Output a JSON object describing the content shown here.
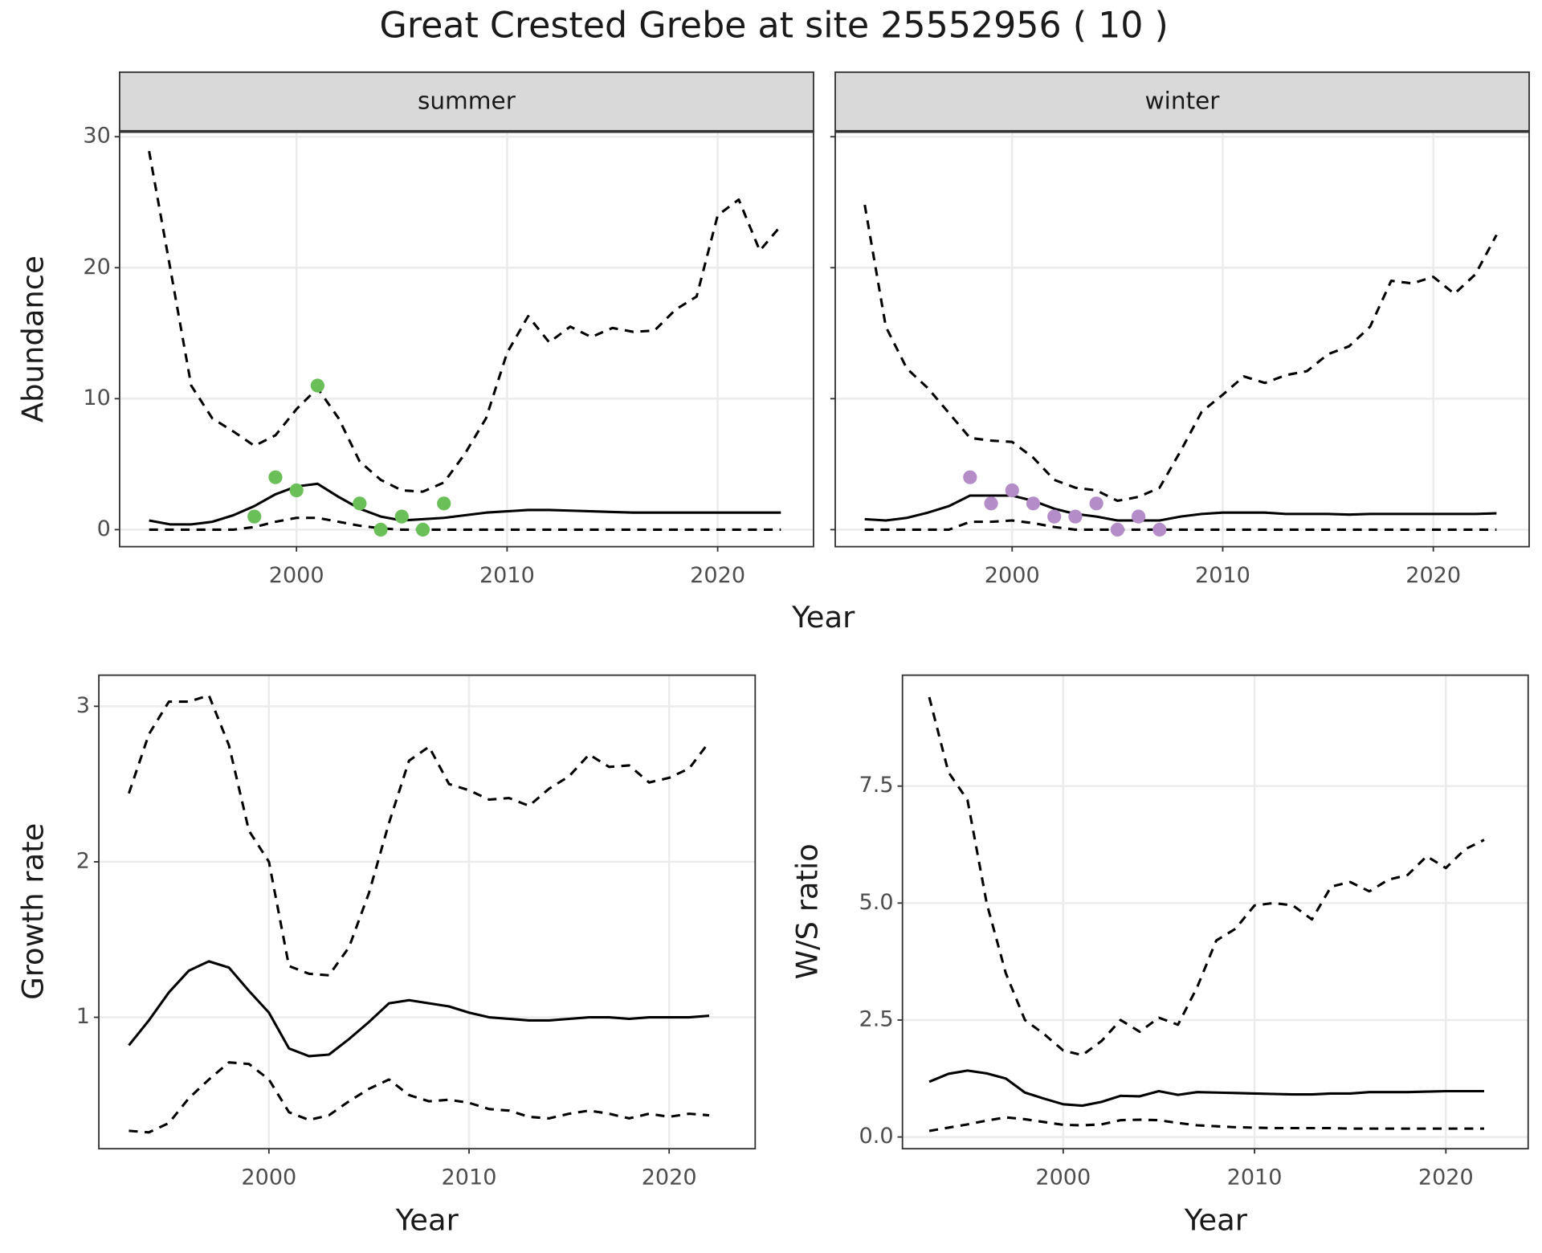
{
  "title": "Great Crested Grebe at site 25552956 ( 10 )",
  "chart_data": [
    {
      "type": "line",
      "strip": "summer",
      "xlabel": "Year",
      "ylabel": "Abundance",
      "x": [
        1993,
        1994,
        1995,
        1996,
        1997,
        1998,
        1999,
        2000,
        2001,
        2002,
        2003,
        2004,
        2005,
        2006,
        2007,
        2008,
        2009,
        2010,
        2011,
        2012,
        2013,
        2014,
        2015,
        2016,
        2017,
        2018,
        2019,
        2020,
        2021,
        2022,
        2023
      ],
      "series": [
        {
          "color": "#000000",
          "dashed": false,
          "values": [
            0.7,
            0.4,
            0.4,
            0.6,
            1.1,
            1.8,
            2.7,
            3.3,
            3.5,
            2.5,
            1.6,
            1.0,
            0.7,
            0.8,
            0.9,
            1.1,
            1.3,
            1.4,
            1.5,
            1.5,
            1.45,
            1.4,
            1.35,
            1.3,
            1.3,
            1.3,
            1.3,
            1.3,
            1.3,
            1.3,
            1.3
          ]
        },
        {
          "color": "#000000",
          "dashed": true,
          "values": [
            0,
            0,
            0,
            0,
            0,
            0.2,
            0.6,
            0.9,
            0.9,
            0.6,
            0.3,
            0.1,
            0,
            0,
            0,
            0,
            0,
            0,
            0,
            0,
            0,
            0,
            0,
            0,
            0,
            0,
            0,
            0,
            0,
            0,
            0
          ]
        },
        {
          "color": "#000000",
          "dashed": true,
          "values": [
            28.9,
            20,
            11,
            8.5,
            7.5,
            6.4,
            7.2,
            9.2,
            10.8,
            8.5,
            5.2,
            3.8,
            3.0,
            2.9,
            3.6,
            5.8,
            8.5,
            13.5,
            16.3,
            14.3,
            15.5,
            14.7,
            15.4,
            15.1,
            15.2,
            16.8,
            17.8,
            24,
            25.2,
            21.3,
            23.2
          ]
        }
      ],
      "points": {
        "color": "#6bbf59",
        "x": [
          1998,
          1999,
          2000,
          2001,
          2003,
          2004,
          2005,
          2006,
          2007
        ],
        "values": [
          1,
          4,
          3,
          11,
          2,
          0,
          1,
          0,
          2
        ]
      },
      "xlim": [
        1991.6,
        2024.55
      ],
      "ylim": [
        -1.3,
        30.4
      ],
      "xticks": [
        2000,
        2010,
        2020
      ],
      "yticks": [
        0,
        10,
        20,
        30
      ],
      "grid": true
    },
    {
      "type": "line",
      "strip": "winter",
      "ytick_labels": false,
      "x": [
        1993,
        1994,
        1995,
        1996,
        1997,
        1998,
        1999,
        2000,
        2001,
        2002,
        2003,
        2004,
        2005,
        2006,
        2007,
        2008,
        2009,
        2010,
        2011,
        2012,
        2013,
        2014,
        2015,
        2016,
        2017,
        2018,
        2019,
        2020,
        2021,
        2022,
        2023
      ],
      "series": [
        {
          "color": "#000000",
          "dashed": false,
          "values": [
            0.8,
            0.7,
            0.9,
            1.3,
            1.8,
            2.6,
            2.6,
            2.6,
            2.2,
            1.6,
            1.2,
            1.0,
            0.7,
            0.7,
            0.7,
            1.0,
            1.2,
            1.3,
            1.3,
            1.3,
            1.2,
            1.2,
            1.2,
            1.15,
            1.2,
            1.2,
            1.2,
            1.2,
            1.2,
            1.2,
            1.25
          ]
        },
        {
          "color": "#000000",
          "dashed": true,
          "values": [
            0,
            0,
            0,
            0,
            0,
            0.6,
            0.6,
            0.7,
            0.5,
            0.2,
            0,
            0,
            0,
            0,
            0,
            0,
            0,
            0,
            0,
            0,
            0,
            0,
            0,
            0,
            0,
            0,
            0,
            0,
            0,
            0,
            0
          ]
        },
        {
          "color": "#000000",
          "dashed": true,
          "values": [
            24.8,
            15.5,
            12.3,
            10.8,
            8.9,
            7.0,
            6.8,
            6.7,
            5.5,
            3.8,
            3.2,
            3.0,
            2.2,
            2.5,
            3.2,
            6.0,
            9.0,
            10.3,
            11.7,
            11.2,
            11.8,
            12.1,
            13.4,
            14.0,
            15.5,
            19.0,
            18.8,
            19.3,
            18.0,
            19.5,
            22.5
          ]
        }
      ],
      "points": {
        "color": "#b48cc8",
        "x": [
          1998,
          1999,
          2000,
          2001,
          2002,
          2003,
          2004,
          2005,
          2006,
          2007
        ],
        "values": [
          4,
          2,
          3,
          2,
          1,
          1,
          2,
          0,
          1,
          0
        ]
      },
      "xlim": [
        1991.6,
        2024.55
      ],
      "ylim": [
        -1.3,
        30.4
      ],
      "xticks": [
        2000,
        2010,
        2020
      ],
      "yticks": [
        0,
        10,
        20,
        30
      ],
      "grid": true
    },
    {
      "type": "line",
      "xlabel": "Year",
      "ylabel": "Growth rate",
      "x": [
        1993,
        1994,
        1995,
        1996,
        1997,
        1998,
        1999,
        2000,
        2001,
        2002,
        2003,
        2004,
        2005,
        2006,
        2007,
        2008,
        2009,
        2010,
        2011,
        2012,
        2013,
        2014,
        2015,
        2016,
        2017,
        2018,
        2019,
        2020,
        2021,
        2022
      ],
      "series": [
        {
          "color": "#000000",
          "dashed": false,
          "values": [
            0.82,
            0.98,
            1.16,
            1.3,
            1.36,
            1.32,
            1.17,
            1.03,
            0.8,
            0.75,
            0.76,
            0.86,
            0.97,
            1.09,
            1.11,
            1.09,
            1.07,
            1.03,
            1.0,
            0.99,
            0.98,
            0.98,
            0.99,
            1.0,
            1.0,
            0.99,
            1.0,
            1.0,
            1.0,
            1.01
          ]
        },
        {
          "color": "#000000",
          "dashed": true,
          "values": [
            0.27,
            0.26,
            0.32,
            0.48,
            0.6,
            0.71,
            0.7,
            0.6,
            0.39,
            0.34,
            0.37,
            0.46,
            0.54,
            0.6,
            0.5,
            0.46,
            0.47,
            0.45,
            0.41,
            0.4,
            0.36,
            0.35,
            0.38,
            0.4,
            0.38,
            0.35,
            0.38,
            0.36,
            0.38,
            0.37
          ]
        },
        {
          "color": "#000000",
          "dashed": true,
          "values": [
            2.44,
            2.82,
            3.03,
            3.03,
            3.07,
            2.75,
            2.2,
            2.0,
            1.33,
            1.28,
            1.27,
            1.45,
            1.8,
            2.25,
            2.65,
            2.74,
            2.5,
            2.46,
            2.4,
            2.41,
            2.36,
            2.47,
            2.55,
            2.69,
            2.61,
            2.62,
            2.51,
            2.54,
            2.6,
            2.77
          ]
        }
      ],
      "xlim": [
        1991.5,
        2024.3
      ],
      "ylim": [
        0.155,
        3.2
      ],
      "xticks": [
        2000,
        2010,
        2020
      ],
      "yticks": [
        1,
        2,
        3
      ],
      "grid": true
    },
    {
      "type": "line",
      "xlabel": "Year",
      "ylabel": "W/S ratio",
      "x": [
        1993,
        1994,
        1995,
        1996,
        1997,
        1998,
        1999,
        2000,
        2001,
        2002,
        2003,
        2004,
        2005,
        2006,
        2007,
        2008,
        2009,
        2010,
        2011,
        2012,
        2013,
        2014,
        2015,
        2016,
        2017,
        2018,
        2019,
        2020,
        2021,
        2022
      ],
      "series": [
        {
          "color": "#000000",
          "dashed": false,
          "values": [
            1.18,
            1.35,
            1.42,
            1.36,
            1.25,
            0.95,
            0.82,
            0.7,
            0.67,
            0.75,
            0.88,
            0.87,
            0.98,
            0.9,
            0.96,
            0.95,
            0.94,
            0.93,
            0.92,
            0.91,
            0.91,
            0.93,
            0.93,
            0.96,
            0.96,
            0.96,
            0.97,
            0.98,
            0.98,
            0.98
          ]
        },
        {
          "color": "#000000",
          "dashed": true,
          "values": [
            0.13,
            0.2,
            0.27,
            0.35,
            0.42,
            0.38,
            0.32,
            0.26,
            0.25,
            0.27,
            0.36,
            0.37,
            0.36,
            0.3,
            0.25,
            0.23,
            0.21,
            0.2,
            0.19,
            0.19,
            0.19,
            0.19,
            0.18,
            0.18,
            0.18,
            0.18,
            0.18,
            0.18,
            0.18,
            0.18
          ]
        },
        {
          "color": "#000000",
          "dashed": true,
          "values": [
            9.4,
            7.8,
            7.2,
            5.0,
            3.5,
            2.5,
            2.2,
            1.85,
            1.75,
            2.05,
            2.5,
            2.25,
            2.55,
            2.4,
            3.2,
            4.2,
            4.45,
            4.95,
            5.0,
            4.95,
            4.65,
            5.35,
            5.45,
            5.25,
            5.5,
            5.6,
            6.0,
            5.75,
            6.15,
            6.35
          ]
        }
      ],
      "xlim": [
        1991.6,
        2024.3
      ],
      "ylim": [
        -0.25,
        9.87
      ],
      "xticks": [
        2000,
        2010,
        2020
      ],
      "yticks": [
        {
          "value": 0,
          "label": "0.0"
        },
        2.5,
        {
          "value": 5,
          "label": "5.0"
        },
        7.5
      ],
      "grid": true
    }
  ]
}
